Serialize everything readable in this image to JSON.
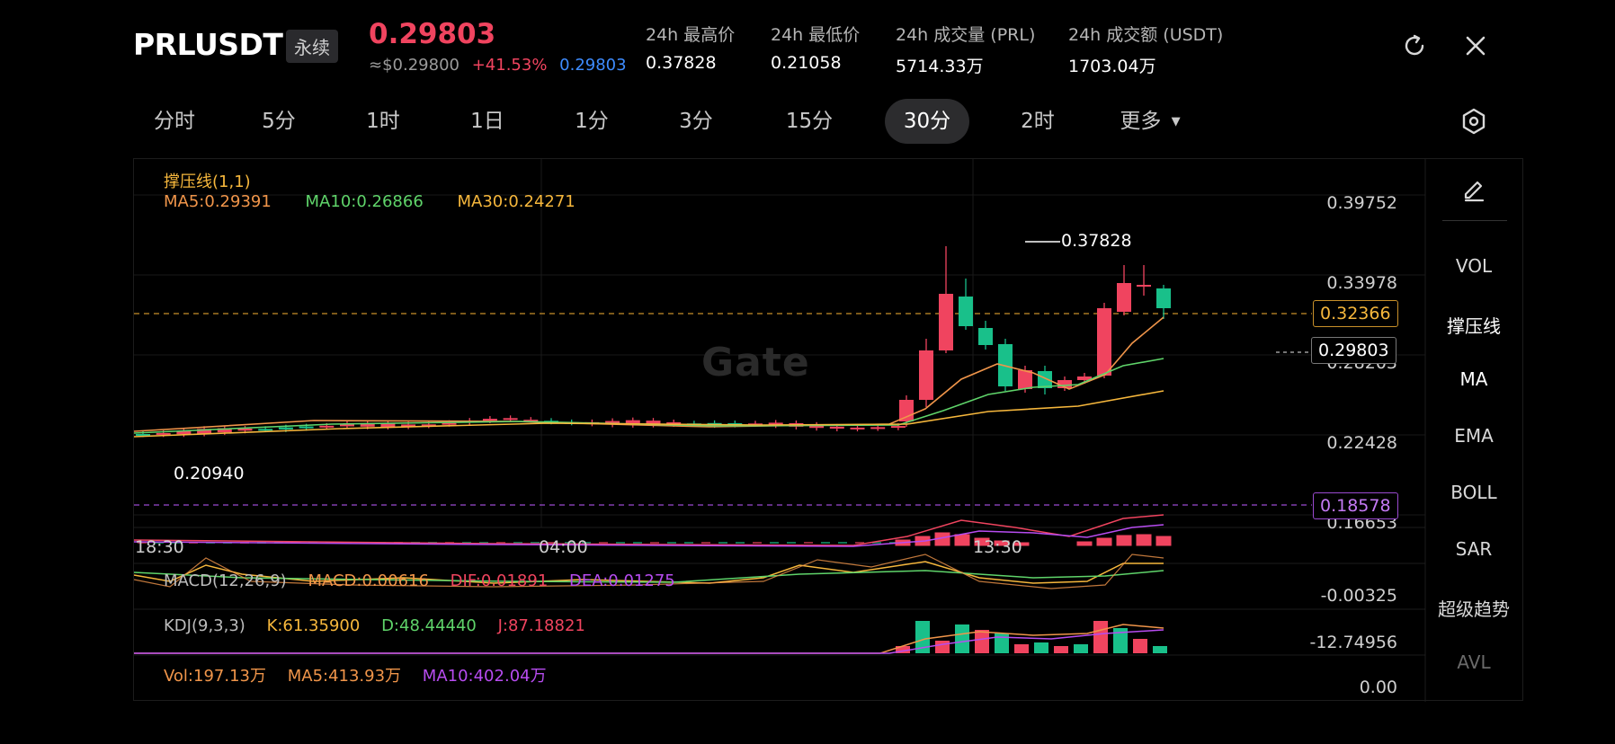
{
  "header": {
    "symbol": "PRLUSDT",
    "tag": "永续",
    "price": "0.29803",
    "usd_price": "≈$0.29800",
    "change": "+41.53%",
    "mark_price": "0.29803",
    "stats": [
      {
        "label": "24h 最高价",
        "value": "0.37828"
      },
      {
        "label": "24h 最低价",
        "value": "0.21058"
      },
      {
        "label": "24h 成交量 (PRL)",
        "value": "5714.33万"
      },
      {
        "label": "24h 成交额 (USDT)",
        "value": "1703.04万"
      }
    ]
  },
  "tabs": [
    "分时",
    "5分",
    "1时",
    "1日",
    "1分",
    "3分",
    "15分",
    "30分",
    "2时",
    "更多"
  ],
  "active_tab": "30分",
  "chart": {
    "indicator_title": "撑压线(1,1)",
    "ma5": "MA5:0.29391",
    "ma10": "MA10:0.26866",
    "ma30": "MA30:0.24271",
    "y_labels": [
      "0.39752",
      "0.33978",
      "0.28203",
      "0.22428",
      "0.16653"
    ],
    "x_labels": [
      "18:30",
      "04:00",
      "13:30"
    ],
    "resistance": "0.32366",
    "current": "0.29803",
    "support": "0.18578",
    "high_label": "0.37828",
    "low_label": "0.20940",
    "watermark": "Gate",
    "macd": {
      "title": "MACD(12,26,9)",
      "macd": "MACD:0.00616",
      "dif": "DIF:0.01891",
      "dea": "DEA:0.01275",
      "axis": "-0.00325"
    },
    "kdj": {
      "title": "KDJ(9,3,3)",
      "k": "K:61.35900",
      "d": "D:48.44440",
      "j": "J:87.18821",
      "axis": "-12.74956"
    },
    "vol": {
      "vol": "Vol:197.13万",
      "ma5": "MA5:413.93万",
      "ma10": "MA10:402.04万",
      "axis": "0.00"
    }
  },
  "side_panel": [
    "VOL",
    "撑压线",
    "MA",
    "EMA",
    "BOLL",
    "SAR",
    "超级趋势",
    "AVL"
  ],
  "colors": {
    "up": "#f0445f",
    "down": "#19c08a",
    "ma5": "#f0954a",
    "ma10": "#5fd46a",
    "ma30": "#f6b73c",
    "accent_blue": "#3e8cff"
  }
}
